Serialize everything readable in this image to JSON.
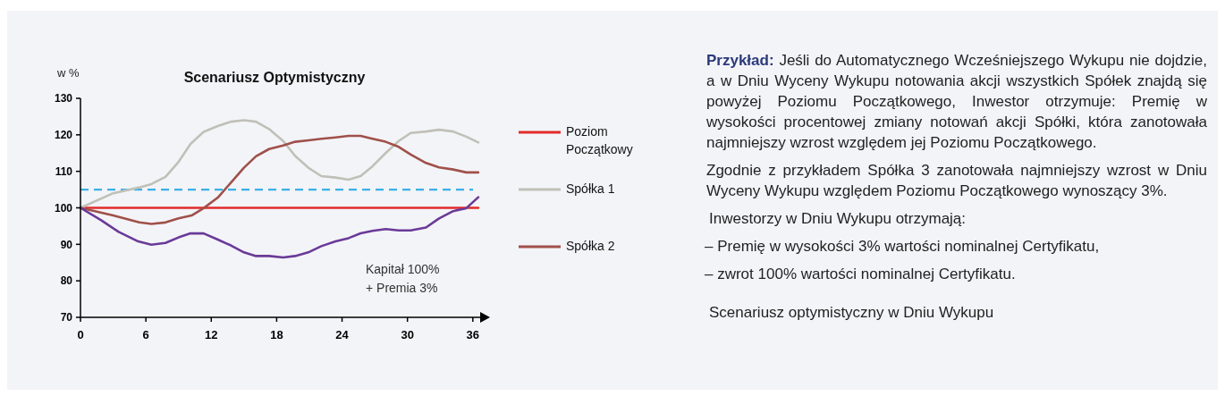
{
  "chart_data": {
    "type": "line",
    "title": "Scenariusz  Optymistyczny",
    "ylabel": "w %",
    "xlim": [
      0,
      37
    ],
    "xticks": [
      0,
      6,
      12,
      18,
      24,
      30,
      36
    ],
    "ylim": [
      70,
      130
    ],
    "yticks": [
      70,
      80,
      90,
      100,
      110,
      120,
      130
    ],
    "grid": false,
    "legend": "right",
    "line_style": "solid",
    "marker": "none",
    "series": [
      {
        "name": "Poziom Początkowy",
        "color": "#e32b2b",
        "x": [
          0,
          36.5
        ],
        "values": [
          100,
          100
        ]
      },
      {
        "name": "Spółka 1",
        "color": "#c0c0b8",
        "x": [
          0,
          3,
          5.4,
          6.5,
          7.8,
          9,
          10.1,
          11.3,
          12.6,
          13.8,
          15,
          16.1,
          17.3,
          18.6,
          19.7,
          20.9,
          22.1,
          23.4,
          24.6,
          25.7,
          26.8,
          28,
          29.2,
          30.3,
          31.7,
          32.9,
          34.2,
          35.4,
          36.5
        ],
        "values": [
          100,
          104,
          105.6,
          106.5,
          108.5,
          112.6,
          117.5,
          120.8,
          122.4,
          123.6,
          124,
          123.6,
          121.6,
          118.3,
          114.2,
          111,
          108.7,
          108.3,
          107.7,
          108.7,
          111.4,
          115,
          118.3,
          120.5,
          120.9,
          121.4,
          120.9,
          119.5,
          117.9
        ]
      },
      {
        "name": "Spółka 2",
        "color": "#a0504a",
        "x": [
          0,
          3,
          5.4,
          6.5,
          7.8,
          9,
          10.2,
          11.3,
          12.6,
          13.8,
          15,
          16.1,
          17.3,
          18.6,
          19.7,
          20.9,
          22.1,
          23.4,
          24.6,
          25.7,
          26.8,
          28,
          29.2,
          30.3,
          31.7,
          32.9,
          34.2,
          35.4,
          36.5
        ],
        "values": [
          100,
          97.9,
          96,
          95.6,
          96,
          97.1,
          97.9,
          99.9,
          102.8,
          106.9,
          111,
          114.1,
          116.1,
          117.1,
          118.1,
          118.5,
          118.9,
          119.3,
          119.7,
          119.7,
          118.9,
          118.1,
          116.7,
          114.6,
          112.3,
          111.1,
          110.5,
          109.7,
          109.7
        ]
      },
      {
        "color": "#6a3a98",
        "x": [
          0,
          1.9,
          3.5,
          5.3,
          6.5,
          7.8,
          9,
          10.1,
          11.3,
          12.6,
          13.8,
          15,
          16.1,
          17.3,
          18.6,
          19.7,
          20.9,
          22.1,
          23.4,
          24.6,
          25.7,
          26.8,
          28,
          29.2,
          30.3,
          31.7,
          32.9,
          34.2,
          35.4,
          36.5
        ],
        "values": [
          100,
          96.6,
          93.4,
          90.8,
          89.9,
          90.4,
          91.9,
          93,
          93,
          91.3,
          89.7,
          87.8,
          86.8,
          86.8,
          86.4,
          86.8,
          87.8,
          89.5,
          90.8,
          91.7,
          93,
          93.7,
          94.2,
          93.8,
          93.8,
          94.6,
          97.1,
          99.1,
          99.9,
          102.9
        ]
      }
    ],
    "ref_lines": [
      {
        "axis": "y",
        "value": 105,
        "color": "#3bb0e6",
        "line_style": "dashed"
      }
    ],
    "annotations": [
      "Kapitał 100%\n+ Premia 3%",
      "Przykład:",
      "Jeśli do Automatycznego Wcześniejszego Wykupu nie dojdzie, a w Dniu Wyceny Wykupu notowania akcji wszystkich Spółek znajdą się powyżej Poziomu Początkowego, Inwestor otrzymuje: Premię w wysokości procentowej zmiany notowań akcji Spółki, która zanotowała najmniejszy wzrost względem jej Poziomu Początkowego.",
      "Zgodnie z przykładem Spółka 3 zanotowała najmniejszy wzrost w Dniu Wyceny Wykupu względem Poziomu Początkowego wynoszący 3%.",
      "Inwestorzy w Dniu Wykupu otrzymają:",
      "– Premię w wysokości 3% wartości nominalnej Certyfikatu,",
      "– zwrot 100% wartości nominalnej Certyfikatu.",
      "Scenariusz optymistyczny w Dniu Wykupu"
    ]
  }
}
